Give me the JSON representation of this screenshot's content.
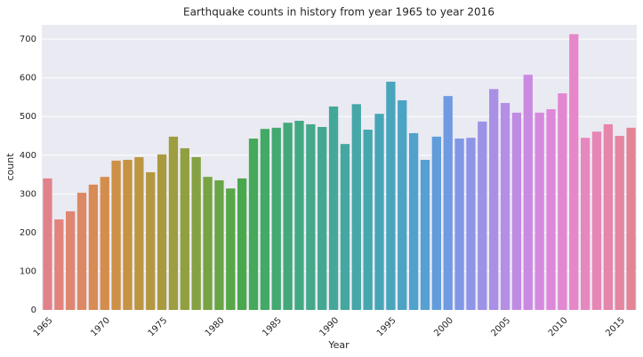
{
  "chart_data": {
    "type": "bar",
    "title": "Earthquake counts in history from year 1965 to year 2016",
    "x_label": "Year",
    "y_label": "count",
    "categories": [
      "1965",
      null,
      null,
      null,
      null,
      "1970",
      null,
      null,
      null,
      null,
      "1975",
      null,
      null,
      null,
      null,
      "1980",
      null,
      null,
      null,
      null,
      "1985",
      null,
      null,
      null,
      null,
      "1990",
      null,
      null,
      null,
      null,
      "1995",
      null,
      null,
      null,
      null,
      "2000",
      null,
      null,
      null,
      null,
      "2005",
      null,
      null,
      null,
      null,
      "2010",
      null,
      null,
      null,
      null,
      "2015",
      null
    ],
    "values": [
      340,
      234,
      255,
      303,
      324,
      344,
      386,
      388,
      395,
      356,
      402,
      448,
      418,
      395,
      344,
      335,
      314,
      340,
      443,
      468,
      471,
      484,
      489,
      480,
      473,
      526,
      429,
      532,
      466,
      507,
      590,
      542,
      457,
      388,
      448,
      553,
      443,
      445,
      487,
      571,
      535,
      510,
      608,
      510,
      519,
      560,
      713,
      445,
      461,
      480,
      450,
      471
    ],
    "colors": [
      "#e1828a",
      "#e1847d",
      "#df8670",
      "#dc8963",
      "#d98b56",
      "#d48d4d",
      "#cd9047",
      "#c59343",
      "#bc9642",
      "#b39841",
      "#a99a40",
      "#9e9d40",
      "#929f40",
      "#85a141",
      "#77a343",
      "#68a545",
      "#57a748",
      "#49a84e",
      "#44a95a",
      "#43a966",
      "#43a970",
      "#43a979",
      "#43a982",
      "#43a98a",
      "#43a892",
      "#44a899",
      "#44a8a0",
      "#45a7a7",
      "#46a7ae",
      "#47a6b5",
      "#49a5bc",
      "#4ba4c4",
      "#4fa2cc",
      "#56a0d4",
      "#629ddb",
      "#709ae1",
      "#8097e5",
      "#8e94e7",
      "#9c92e7",
      "#a990e6",
      "#b58ee5",
      "#c08ce3",
      "#cb8ae1",
      "#d589de",
      "#dd88d9",
      "#e387d2",
      "#e687c9",
      "#e787bf",
      "#e786b5",
      "#e686aa",
      "#e585a0",
      "#e38495"
    ],
    "ylim": [
      0,
      737
    ],
    "yticks": [
      0,
      100,
      200,
      300,
      400,
      500,
      600,
      700
    ],
    "grid": true
  }
}
